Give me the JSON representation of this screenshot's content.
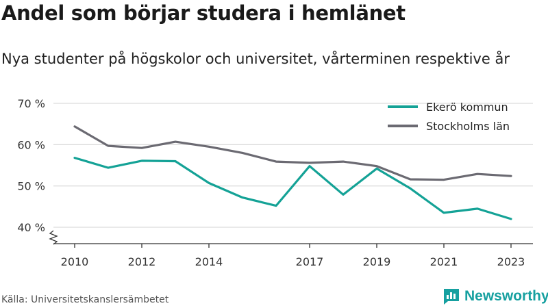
{
  "title": "Andel som börjar studera i hemlänet",
  "subtitle": "Nya studenter på högskolor och universitet, vårterminen respektive år",
  "source": "Källa: Universitetskanslersämbetet",
  "brand": "Newsworthy",
  "colors": {
    "teal": "#14a296",
    "gray": "#6b6a72",
    "grid": "#dcdcdc",
    "axis": "#333333"
  },
  "chart_data": {
    "type": "line",
    "x": [
      2010,
      2011,
      2012,
      2013,
      2014,
      2015,
      2016,
      2017,
      2018,
      2019,
      2020,
      2021,
      2022,
      2023
    ],
    "x_tick_labels": [
      "2010",
      "2012",
      "2014",
      "2017",
      "2019",
      "2021",
      "2023"
    ],
    "y_tick_labels": [
      "40 %",
      "50 %",
      "60 %",
      "70 %"
    ],
    "y_ticks": [
      40,
      50,
      60,
      70
    ],
    "ylim": [
      37,
      70
    ],
    "xlim": [
      2010,
      2023
    ],
    "grid": true,
    "legend": "top-right",
    "series": [
      {
        "name": "Ekerö kommun",
        "color": "#14a296",
        "values": [
          56.8,
          54.4,
          56.1,
          56.0,
          50.7,
          47.2,
          45.2,
          54.8,
          47.9,
          54.2,
          49.4,
          43.5,
          44.5,
          42.0
        ]
      },
      {
        "name": "Stockholms län",
        "color": "#6b6a72",
        "values": [
          64.4,
          59.7,
          59.2,
          60.7,
          59.5,
          58.0,
          55.9,
          55.6,
          55.9,
          54.8,
          51.6,
          51.5,
          52.9,
          52.4
        ]
      }
    ]
  }
}
